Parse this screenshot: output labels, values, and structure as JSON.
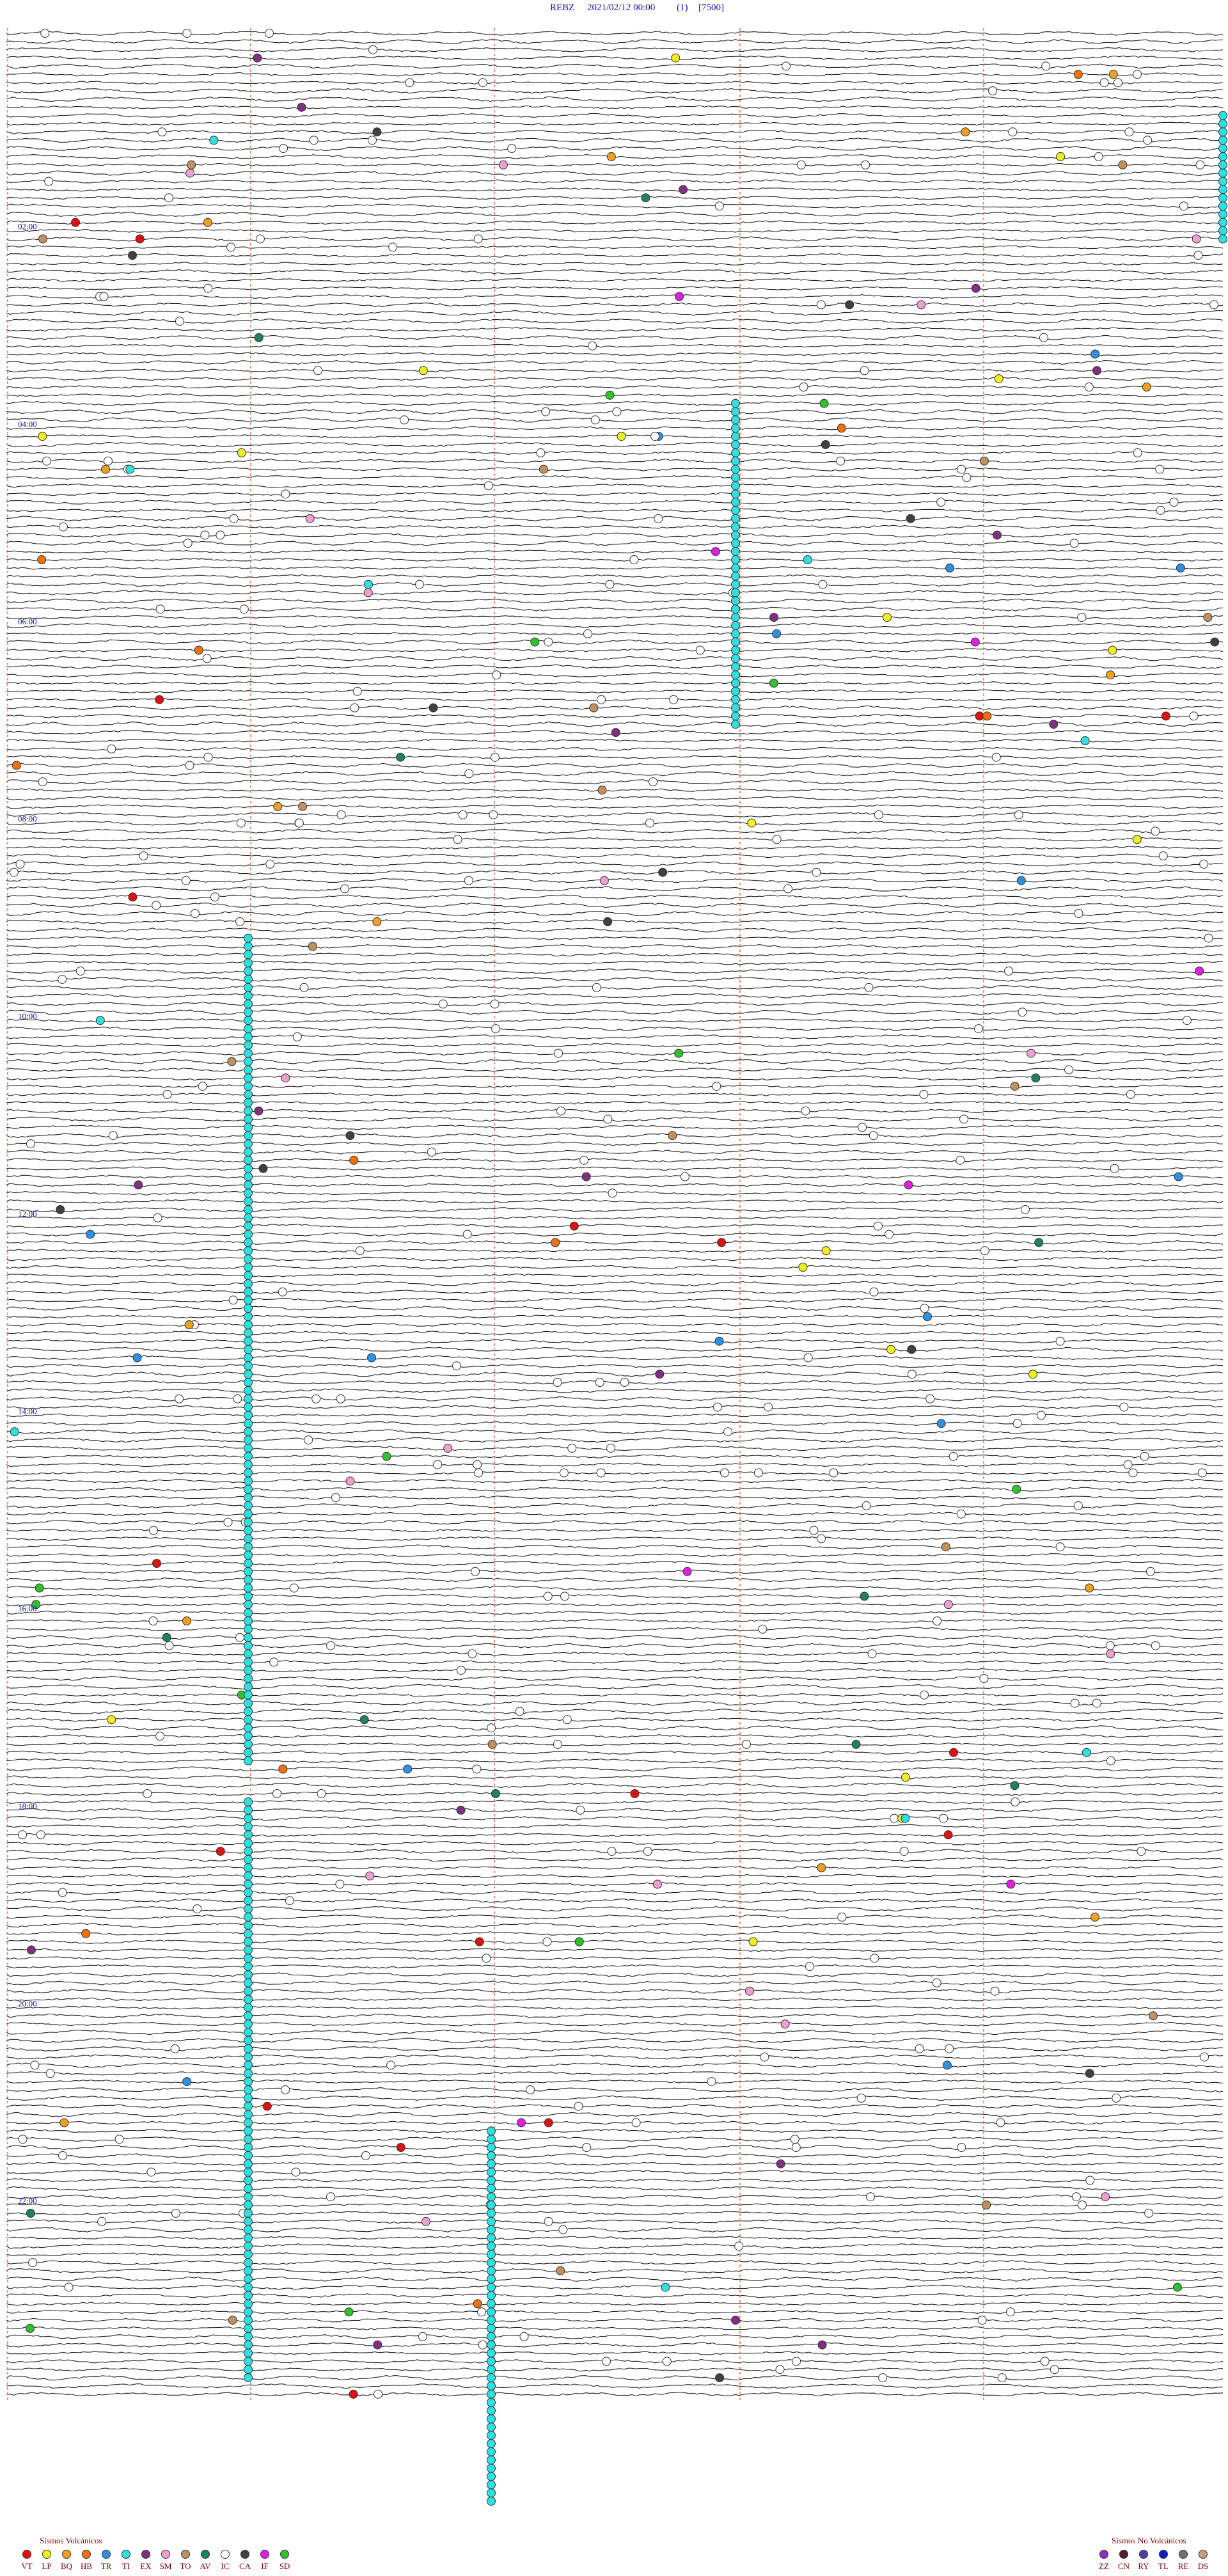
{
  "header": {
    "station": "REBZ",
    "datetime": "2021/02/12 00:00",
    "channel": "(1)",
    "scale": "[7500]"
  },
  "hour_labels": [
    "02:00",
    "04:00",
    "06:00",
    "08:00",
    "10:00",
    "12:00",
    "14:00",
    "16:00",
    "18:00",
    "20:00",
    "22:00"
  ],
  "legend": {
    "volcanic": {
      "title": "Sismos Volcánicos",
      "items": [
        {
          "code": "VT",
          "color": "#e01010"
        },
        {
          "code": "LP",
          "color": "#f0f020"
        },
        {
          "code": "BQ",
          "color": "#f0a020"
        },
        {
          "code": "HB",
          "color": "#f07010"
        },
        {
          "code": "TR",
          "color": "#3090e0"
        },
        {
          "code": "TI",
          "color": "#30e0e0"
        },
        {
          "code": "EX",
          "color": "#803080"
        },
        {
          "code": "SM",
          "color": "#f0a0d0"
        },
        {
          "code": "TO",
          "color": "#c09060"
        },
        {
          "code": "AV",
          "color": "#208060"
        },
        {
          "code": "IC",
          "color": "#ffffff"
        },
        {
          "code": "CA",
          "color": "#404040"
        },
        {
          "code": "IF",
          "color": "#e020e0"
        },
        {
          "code": "SD",
          "color": "#30c030"
        }
      ]
    },
    "non_volcanic": {
      "title": "Sismos No Volcánicos",
      "items": [
        {
          "code": "ZZ",
          "color": "#9030c0"
        },
        {
          "code": "CN",
          "color": "#502030"
        },
        {
          "code": "RY",
          "color": "#5040a0"
        },
        {
          "code": "TL",
          "color": "#1020c0"
        },
        {
          "code": "RE",
          "color": "#707070"
        },
        {
          "code": "DS",
          "color": "#c0a080"
        }
      ]
    }
  }
}
